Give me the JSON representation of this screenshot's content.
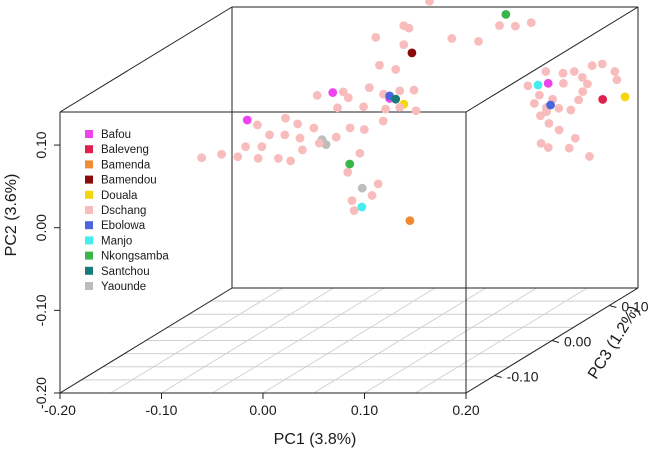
{
  "chart_data": {
    "type": "scatter3d",
    "title": "",
    "xlabel": "PC1 (3.8%)",
    "ylabel": "PC2 (3.6%)",
    "zlabel": "PC3 (1.2%)",
    "xlim": [
      -0.2,
      0.2
    ],
    "ylim": [
      -0.2,
      0.14
    ],
    "zlim": [
      -0.15,
      0.15
    ],
    "x_ticks": [
      {
        "value": -0.2,
        "label": "-0.20"
      },
      {
        "value": -0.1,
        "label": "-0.10"
      },
      {
        "value": 0.0,
        "label": "0.00"
      },
      {
        "value": 0.1,
        "label": "0.10"
      },
      {
        "value": 0.2,
        "label": "0.20"
      }
    ],
    "y_ticks": [
      {
        "value": -0.2,
        "label": "-0.20"
      },
      {
        "value": -0.1,
        "label": "-0.10"
      },
      {
        "value": 0.0,
        "label": "0.00"
      },
      {
        "value": 0.1,
        "label": "0.10"
      }
    ],
    "z_ticks": [
      {
        "value": -0.1,
        "label": "-0.10"
      },
      {
        "value": 0.0,
        "label": "0.00"
      },
      {
        "value": 0.1,
        "label": "0.10"
      }
    ],
    "legend_position": "top-left",
    "series": [
      {
        "name": "Bafou",
        "color": "#ee44ee",
        "points": [
          [
            -0.016,
            0.1,
            0.0
          ],
          [
            -0.072,
            0.088,
            -0.05
          ],
          [
            0.04,
            0.093,
            0.0
          ],
          [
            0.168,
            0.09,
            0.05
          ]
        ]
      },
      {
        "name": "Baleveng",
        "color": "#e0204a",
        "points": [
          [
            0.233,
            0.079,
            0.03
          ]
        ]
      },
      {
        "name": "Bamenda",
        "color": "#f08a33",
        "points": [
          [
            0.06,
            -0.055,
            0.0
          ]
        ]
      },
      {
        "name": "Bamendou",
        "color": "#8b0a0a",
        "points": [
          [
            0.062,
            0.148,
            0.0
          ]
        ]
      },
      {
        "name": "Douala",
        "color": "#f5d60a",
        "points": [
          [
            0.054,
            0.086,
            0.0
          ],
          [
            0.255,
            0.082,
            0.03
          ]
        ]
      },
      {
        "name": "Dschang",
        "color": "#f8bcbc",
        "points": [
          [
            0.068,
            0.202,
            0.02
          ],
          [
            0.094,
            0.202,
            0.04
          ],
          [
            0.054,
            0.181,
            0.0
          ],
          [
            0.059,
            0.178,
            0.0
          ],
          [
            0.032,
            0.171,
            -0.01
          ],
          [
            0.054,
            0.158,
            0.0
          ],
          [
            0.09,
            0.157,
            0.02
          ],
          [
            0.13,
            0.155,
            0.06
          ],
          [
            0.14,
            0.155,
            0.07
          ],
          [
            0.105,
            0.145,
            0.04
          ],
          [
            0.12,
            0.16,
            0.05
          ],
          [
            0.03,
            0.133,
            0.0
          ],
          [
            0.046,
            0.128,
            0.0
          ],
          [
            -0.02,
            0.105,
            -0.02
          ],
          [
            0.0,
            0.105,
            -0.01
          ],
          [
            0.005,
            0.098,
            -0.01
          ],
          [
            0.02,
            0.106,
            0.0
          ],
          [
            0.034,
            0.098,
            0.0
          ],
          [
            0.05,
            0.102,
            0.0
          ],
          [
            0.064,
            0.103,
            0.0
          ],
          [
            0.0,
            0.09,
            -0.02
          ],
          [
            0.02,
            0.087,
            -0.01
          ],
          [
            0.036,
            0.08,
            0.0
          ],
          [
            0.05,
            0.082,
            0.0
          ],
          [
            0.066,
            0.078,
            0.0
          ],
          [
            -0.062,
            0.082,
            -0.05
          ],
          [
            -0.04,
            0.086,
            -0.04
          ],
          [
            -0.028,
            0.079,
            -0.04
          ],
          [
            -0.012,
            0.074,
            -0.04
          ],
          [
            -0.05,
            0.07,
            -0.05
          ],
          [
            -0.035,
            0.07,
            -0.05
          ],
          [
            -0.02,
            0.066,
            -0.05
          ],
          [
            -0.052,
            0.06,
            -0.06
          ],
          [
            -0.068,
            0.06,
            -0.06
          ],
          [
            0.018,
            0.07,
            -0.03
          ],
          [
            0.032,
            0.068,
            -0.03
          ],
          [
            0.045,
            0.074,
            -0.02
          ],
          [
            0.01,
            0.063,
            -0.04
          ],
          [
            -0.1,
            0.055,
            -0.08
          ],
          [
            -0.086,
            0.055,
            -0.07
          ],
          [
            -0.07,
            0.052,
            -0.07
          ],
          [
            -0.05,
            0.05,
            -0.07
          ],
          [
            -0.03,
            0.05,
            -0.07
          ],
          [
            -0.012,
            0.056,
            -0.06
          ],
          [
            -0.001,
            0.06,
            -0.05
          ],
          [
            -0.018,
            0.047,
            -0.07
          ],
          [
            0.022,
            0.035,
            -0.02
          ],
          [
            0.01,
            0.012,
            -0.02
          ],
          [
            0.04,
            -0.002,
            -0.02
          ],
          [
            0.02,
            -0.018,
            -0.03
          ],
          [
            0.034,
            -0.016,
            -0.02
          ],
          [
            0.022,
            -0.03,
            -0.03
          ],
          [
            0.148,
            0.087,
            0.05
          ],
          [
            0.16,
            0.1,
            0.06
          ],
          [
            0.177,
            0.098,
            0.06
          ],
          [
            0.188,
            0.1,
            0.06
          ],
          [
            0.196,
            0.093,
            0.06
          ],
          [
            0.2,
            0.103,
            0.07
          ],
          [
            0.183,
            0.09,
            0.05
          ],
          [
            0.201,
            0.085,
            0.06
          ],
          [
            0.165,
            0.08,
            0.04
          ],
          [
            0.178,
            0.075,
            0.04
          ],
          [
            0.198,
            0.07,
            0.05
          ],
          [
            0.16,
            0.07,
            0.04
          ],
          [
            0.184,
            0.064,
            0.04
          ],
          [
            0.196,
            0.062,
            0.04
          ],
          [
            0.202,
            0.08,
            0.05
          ],
          [
            0.21,
            0.105,
            0.07
          ],
          [
            0.228,
            0.1,
            0.06
          ],
          [
            0.23,
            0.09,
            0.06
          ],
          [
            0.172,
            0.06,
            0.04
          ],
          [
            0.18,
            0.05,
            0.03
          ],
          [
            0.19,
            0.042,
            0.03
          ],
          [
            0.178,
            0.03,
            0.02
          ],
          [
            0.185,
            0.025,
            0.02
          ],
          [
            0.2,
            0.02,
            0.03
          ],
          [
            0.22,
            0.01,
            0.03
          ],
          [
            0.206,
            0.032,
            0.03
          ],
          [
            0.166,
            0.055,
            0.04
          ],
          [
            0.172,
            0.065,
            0.04
          ]
        ]
      },
      {
        "name": "Ebolowa",
        "color": "#4a66dd",
        "points": [
          [
            0.04,
            0.096,
            0.0
          ],
          [
            0.176,
            0.068,
            0.04
          ]
        ]
      },
      {
        "name": "Manjo",
        "color": "#44eeee",
        "points": [
          [
            0.024,
            -0.03,
            -0.02
          ],
          [
            0.158,
            0.088,
            0.05
          ]
        ]
      },
      {
        "name": "Nkongsamba",
        "color": "#3ab54a",
        "points": [
          [
            0.012,
            0.022,
            -0.02
          ],
          [
            0.115,
            0.165,
            0.07
          ]
        ]
      },
      {
        "name": "Santchou",
        "color": "#1a7a7a",
        "points": [
          [
            0.046,
            0.092,
            0.0
          ]
        ]
      },
      {
        "name": "Yaounde",
        "color": "#bdbdbd",
        "points": [
          [
            -0.004,
            0.06,
            -0.04
          ],
          [
            0.0,
            0.054,
            -0.04
          ],
          [
            0.03,
            -0.003,
            -0.03
          ]
        ]
      }
    ]
  }
}
